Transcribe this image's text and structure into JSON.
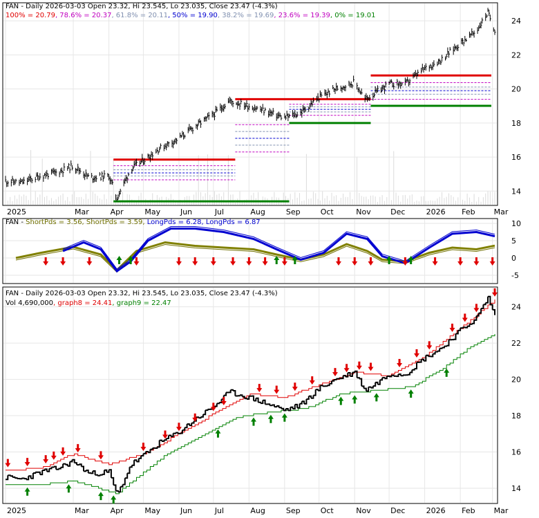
{
  "chart_data": [
    {
      "type": "line",
      "panel": "fibonacci-price",
      "title": "FAN - Daily 2026-03-03 Open 23.32, Hi 23.545, Lo 23.035, Close 23.47 (-4.3%)",
      "fib_legend": [
        {
          "label": "100% = 20.79",
          "color": "#e00000"
        },
        {
          "label": "78.6% = 20.37",
          "color": "#c000c0"
        },
        {
          "label": "61.8% = 20.11",
          "color": "#8090b0"
        },
        {
          "label": "50% = 19.90",
          "color": "#0000d0"
        },
        {
          "label": "38.2% = 19.69",
          "color": "#8090b0"
        },
        {
          "label": "23.6% = 19.39",
          "color": "#c000c0"
        },
        {
          "label": "0% = 19.01",
          "color": "#008000"
        }
      ],
      "x_ticks": [
        "2025",
        "Mar",
        "Apr",
        "May",
        "Jun",
        "Jul",
        "Aug",
        "Sep",
        "Oct",
        "Nov",
        "Dec",
        "2026",
        "Feb",
        "Mar"
      ],
      "y_ticks": [
        14,
        16,
        18,
        20,
        22,
        24
      ],
      "ylim": [
        13.2,
        24.9
      ],
      "price": {
        "x": [
          "2025-01-01",
          "2025-01-15",
          "2025-02-01",
          "2025-02-15",
          "2025-03-01",
          "2025-03-15",
          "2025-04-01",
          "2025-04-08",
          "2025-04-20",
          "2025-05-01",
          "2025-05-15",
          "2025-06-01",
          "2025-06-15",
          "2025-07-01",
          "2025-07-15",
          "2025-08-01",
          "2025-08-15",
          "2025-09-01",
          "2025-09-15",
          "2025-10-01",
          "2025-10-15",
          "2025-11-01",
          "2025-11-10",
          "2025-11-20",
          "2025-12-01",
          "2025-12-15",
          "2026-01-01",
          "2026-01-15",
          "2026-02-01",
          "2026-02-15",
          "2026-02-25",
          "2026-03-03"
        ],
        "y": [
          14.6,
          14.5,
          14.9,
          15.1,
          15.5,
          14.8,
          14.9,
          13.6,
          15.3,
          15.8,
          16.5,
          17.1,
          17.8,
          18.5,
          19.3,
          19.0,
          18.7,
          18.3,
          18.6,
          19.5,
          20.0,
          20.4,
          19.4,
          19.8,
          20.3,
          20.3,
          21.2,
          21.7,
          22.7,
          23.4,
          24.5,
          23.47
        ]
      },
      "fib_sets": [
        {
          "x_range": [
            "2025-04-05",
            "2025-07-20"
          ],
          "levels": [
            15.85,
            15.49,
            15.25,
            15.07,
            14.89,
            14.66,
            13.4
          ],
          "top_color": "#e00000",
          "bottom_color": "#008000"
        },
        {
          "x_range": [
            "2025-07-20",
            "2025-09-05"
          ],
          "levels": [
            19.4,
            17.9,
            17.5,
            17.1,
            16.7,
            16.3,
            13.4
          ],
          "top_color": "#e00000",
          "bottom_color": "#008000"
        },
        {
          "x_range": [
            "2025-09-05",
            "2025-11-15"
          ],
          "levels": [
            19.4,
            19.1,
            18.95,
            18.8,
            18.65,
            18.45,
            18.0
          ],
          "top_color": "#e00000",
          "bottom_color": "#008000"
        },
        {
          "x_range": [
            "2025-11-15",
            "2026-02-28"
          ],
          "levels": [
            20.79,
            20.37,
            20.11,
            19.9,
            19.69,
            19.39,
            19.01
          ],
          "top_color": "#e00000",
          "bottom_color": "#008000"
        }
      ]
    },
    {
      "type": "line",
      "panel": "pds-indicator",
      "title": "FAN - ShortPds = 3.56, ShortPds = 3.59, LongPds = 6.28, LongPds = 6.87",
      "legend": [
        {
          "label": "FAN -",
          "color": "#000000"
        },
        {
          "label": "ShortPds = 3.56,",
          "color": "#707000"
        },
        {
          "label": "ShortPds = 3.59,",
          "color": "#707000"
        },
        {
          "label": "LongPds = 6.28,",
          "color": "#0000d0"
        },
        {
          "label": "LongPds = 6.87",
          "color": "#0000d0"
        }
      ],
      "y_ticks": [
        -5,
        0,
        5,
        10
      ],
      "ylim": [
        -7,
        11
      ],
      "short_pds": {
        "x": [
          "2025-01-10",
          "2025-02-01",
          "2025-03-01",
          "2025-03-25",
          "2025-04-08",
          "2025-04-25",
          "2025-05-20",
          "2025-06-15",
          "2025-07-10",
          "2025-08-05",
          "2025-08-25",
          "2025-09-15",
          "2025-10-05",
          "2025-10-25",
          "2025-11-12",
          "2025-11-25",
          "2025-12-15",
          "2026-01-05",
          "2026-01-25",
          "2026-02-15",
          "2026-03-03"
        ],
        "y": [
          0,
          1.5,
          3.2,
          1.0,
          -3.5,
          2.0,
          4.5,
          3.5,
          3.0,
          2.5,
          1.0,
          -0.5,
          1.0,
          4.0,
          2.0,
          -0.5,
          -1.0,
          1.5,
          3.0,
          2.5,
          3.56
        ]
      },
      "long_pds": {
        "x": [
          "2025-02-20",
          "2025-03-10",
          "2025-03-25",
          "2025-04-08",
          "2025-04-20",
          "2025-05-05",
          "2025-05-25",
          "2025-06-15",
          "2025-07-10",
          "2025-08-05",
          "2025-08-25",
          "2025-09-15",
          "2025-10-05",
          "2025-10-25",
          "2025-11-12",
          "2025-11-25",
          "2025-12-15",
          "2026-01-05",
          "2026-01-25",
          "2026-02-15",
          "2026-03-03"
        ],
        "y": [
          2.0,
          4.5,
          2.5,
          -3.8,
          -1.0,
          5.0,
          8.5,
          8.5,
          7.5,
          5.5,
          2.5,
          -0.5,
          1.5,
          7.0,
          5.5,
          0.5,
          -1.5,
          3.0,
          7.0,
          7.5,
          6.28
        ]
      },
      "sell_arrows": [
        "2025-02-05",
        "2025-02-20",
        "2025-03-15",
        "2025-04-25",
        "2025-06-01",
        "2025-06-15",
        "2025-07-01",
        "2025-07-18",
        "2025-08-01",
        "2025-08-15",
        "2025-09-01",
        "2025-10-18",
        "2025-11-01",
        "2025-11-15",
        "2025-12-15",
        "2026-01-10",
        "2026-02-01",
        "2026-02-15",
        "2026-03-01"
      ],
      "buy_arrows": [
        "2025-04-10",
        "2025-04-20",
        "2025-08-25",
        "2025-09-10",
        "2025-12-01",
        "2025-12-20"
      ]
    },
    {
      "type": "line",
      "panel": "guppy-price",
      "title": "FAN - Daily 2026-03-03 Open 23.32, Hi 23.545, Lo 23.035, Close 23.47 (-4.3%)",
      "legend": [
        {
          "label": "Vol 4,690,000",
          "color": "#000000"
        },
        {
          "label": "graph8 = 24.41,",
          "color": "#e00000"
        },
        {
          "label": "graph9 = 22.47",
          "color": "#008000"
        }
      ],
      "x_ticks": [
        "2025",
        "Mar",
        "Apr",
        "May",
        "Jun",
        "Jul",
        "Aug",
        "Sep",
        "Oct",
        "Nov",
        "Dec",
        "2026",
        "Feb",
        "Mar"
      ],
      "y_ticks": [
        14,
        16,
        18,
        20,
        22,
        24
      ],
      "ylim": [
        13.2,
        24.9
      ],
      "graph8": {
        "x": [
          "2025-01-01",
          "2025-02-01",
          "2025-03-01",
          "2025-04-01",
          "2025-05-01",
          "2025-06-01",
          "2025-07-01",
          "2025-08-01",
          "2025-09-01",
          "2025-10-01",
          "2025-11-01",
          "2025-12-01",
          "2026-01-01",
          "2026-02-01",
          "2026-03-03"
        ],
        "y": [
          15.0,
          15.1,
          15.9,
          15.3,
          15.9,
          17.0,
          18.1,
          19.2,
          19.0,
          19.7,
          20.4,
          20.2,
          21.3,
          22.8,
          24.41
        ]
      },
      "graph9": {
        "x": [
          "2025-01-01",
          "2025-02-01",
          "2025-03-01",
          "2025-04-08",
          "2025-04-25",
          "2025-05-20",
          "2025-06-20",
          "2025-07-20",
          "2025-08-20",
          "2025-09-20",
          "2025-10-20",
          "2025-11-20",
          "2025-12-20",
          "2026-01-15",
          "2026-02-10",
          "2026-03-03"
        ],
        "y": [
          14.2,
          14.2,
          14.4,
          13.7,
          14.6,
          15.8,
          16.9,
          17.9,
          18.2,
          18.4,
          19.2,
          19.4,
          19.6,
          20.5,
          21.8,
          22.47
        ]
      },
      "sell_arrows": [
        "2025-01-03",
        "2025-01-20",
        "2025-02-05",
        "2025-02-12",
        "2025-02-20",
        "2025-03-05",
        "2025-03-25",
        "2025-05-01",
        "2025-05-20",
        "2025-06-01",
        "2025-06-15",
        "2025-07-01",
        "2025-07-10",
        "2025-08-10",
        "2025-08-25",
        "2025-09-10",
        "2025-09-25",
        "2025-10-15",
        "2025-10-25",
        "2025-11-05",
        "2025-11-15",
        "2025-12-10",
        "2025-12-25",
        "2026-01-05",
        "2026-01-25",
        "2026-02-05",
        "2026-02-15",
        "2026-03-03"
      ],
      "buy_arrows": [
        "2025-01-20",
        "2025-02-25",
        "2025-03-25",
        "2025-04-05",
        "2025-07-05",
        "2025-08-05",
        "2025-08-20",
        "2025-09-01",
        "2025-10-20",
        "2025-11-01",
        "2025-11-20",
        "2025-12-20",
        "2026-01-20"
      ]
    }
  ]
}
